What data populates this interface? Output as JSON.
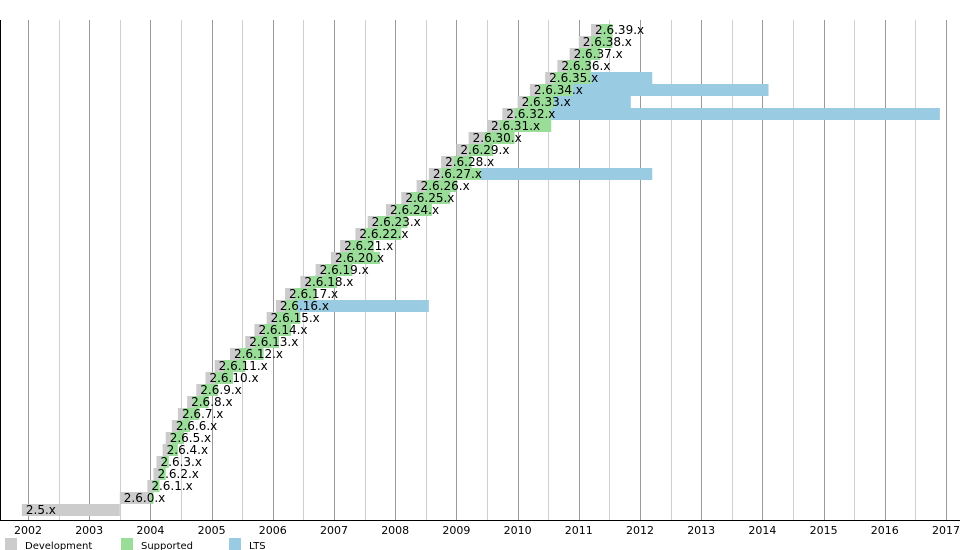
{
  "chart_data": {
    "type": "gantt",
    "title": "",
    "colors": {
      "Development": "#cccccc",
      "Supported": "#99dd99",
      "LTS": "#99cce3",
      "grid": "#999999",
      "grid_minor": "#cfcfcf"
    },
    "x_ticks": [
      2002,
      2003,
      2004,
      2005,
      2006,
      2007,
      2008,
      2009,
      2010,
      2011,
      2012,
      2013,
      2014,
      2015,
      2016,
      2017
    ],
    "xlim": [
      2001.8,
      2017.3
    ],
    "grid": true,
    "legend": {
      "placement": "bottom-left",
      "items": [
        {
          "name": "Development",
          "color": "#cccccc"
        },
        {
          "name": "Supported",
          "color": "#99dd99"
        },
        {
          "name": "LTS",
          "color": "#99cce3"
        }
      ]
    },
    "releases": [
      {
        "version": "2.5.x",
        "dev": [
          2001.9,
          2003.5
        ]
      },
      {
        "version": "2.6.0.x",
        "dev": [
          2003.5,
          2004.0
        ],
        "supported": [
          2004.0,
          2004.05
        ]
      },
      {
        "version": "2.6.1.x",
        "dev": [
          2003.95,
          2004.05
        ],
        "supported": [
          2004.05,
          2004.15
        ]
      },
      {
        "version": "2.6.2.x",
        "dev": [
          2004.05,
          2004.15
        ],
        "supported": [
          2004.15,
          2004.25
        ]
      },
      {
        "version": "2.6.3.x",
        "dev": [
          2004.1,
          2004.2
        ],
        "supported": [
          2004.2,
          2004.3
        ]
      },
      {
        "version": "2.6.4.x",
        "dev": [
          2004.2,
          2004.3
        ],
        "supported": [
          2004.3,
          2004.45
        ]
      },
      {
        "version": "2.6.5.x",
        "dev": [
          2004.25,
          2004.35
        ],
        "supported": [
          2004.35,
          2004.55
        ]
      },
      {
        "version": "2.6.6.x",
        "dev": [
          2004.35,
          2004.45
        ],
        "supported": [
          2004.45,
          2004.65
        ]
      },
      {
        "version": "2.6.7.x",
        "dev": [
          2004.45,
          2004.55
        ],
        "supported": [
          2004.55,
          2004.8
        ]
      },
      {
        "version": "2.6.8.x",
        "dev": [
          2004.6,
          2004.7
        ],
        "supported": [
          2004.7,
          2004.95
        ]
      },
      {
        "version": "2.6.9.x",
        "dev": [
          2004.75,
          2004.85
        ],
        "supported": [
          2004.85,
          2005.1
        ]
      },
      {
        "version": "2.6.10.x",
        "dev": [
          2004.9,
          2005.05
        ],
        "supported": [
          2005.05,
          2005.35
        ]
      },
      {
        "version": "2.6.11.x",
        "dev": [
          2005.05,
          2005.2
        ],
        "supported": [
          2005.2,
          2005.55
        ]
      },
      {
        "version": "2.6.12.x",
        "dev": [
          2005.3,
          2005.45
        ],
        "supported": [
          2005.45,
          2005.85
        ]
      },
      {
        "version": "2.6.13.x",
        "dev": [
          2005.55,
          2005.7
        ],
        "supported": [
          2005.7,
          2006.1
        ]
      },
      {
        "version": "2.6.14.x",
        "dev": [
          2005.7,
          2005.85
        ],
        "supported": [
          2005.85,
          2006.3
        ]
      },
      {
        "version": "2.6.15.x",
        "dev": [
          2005.9,
          2006.05
        ],
        "supported": [
          2006.05,
          2006.45
        ]
      },
      {
        "version": "2.6.16.x",
        "dev": [
          2006.05,
          2006.2
        ],
        "supported": [
          2006.2,
          2006.4
        ],
        "lts": [
          2006.4,
          2008.55
        ]
      },
      {
        "version": "2.6.17.x",
        "dev": [
          2006.2,
          2006.35
        ],
        "supported": [
          2006.35,
          2006.7
        ]
      },
      {
        "version": "2.6.18.x",
        "dev": [
          2006.45,
          2006.6
        ],
        "supported": [
          2006.6,
          2007.05
        ]
      },
      {
        "version": "2.6.19.x",
        "dev": [
          2006.7,
          2006.85
        ],
        "supported": [
          2006.85,
          2007.3
        ]
      },
      {
        "version": "2.6.20.x",
        "dev": [
          2006.95,
          2007.1
        ],
        "supported": [
          2007.1,
          2007.75
        ]
      },
      {
        "version": "2.6.21.x",
        "dev": [
          2007.1,
          2007.25
        ],
        "supported": [
          2007.25,
          2007.65
        ]
      },
      {
        "version": "2.6.22.x",
        "dev": [
          2007.35,
          2007.5
        ],
        "supported": [
          2007.5,
          2008.1
        ]
      },
      {
        "version": "2.6.23.x",
        "dev": [
          2007.55,
          2007.7
        ],
        "supported": [
          2007.7,
          2008.2
        ]
      },
      {
        "version": "2.6.24.x",
        "dev": [
          2007.85,
          2008.0
        ],
        "supported": [
          2008.0,
          2008.6
        ]
      },
      {
        "version": "2.6.25.x",
        "dev": [
          2008.1,
          2008.25
        ],
        "supported": [
          2008.25,
          2008.9
        ]
      },
      {
        "version": "2.6.26.x",
        "dev": [
          2008.35,
          2008.5
        ],
        "supported": [
          2008.5,
          2009.0
        ]
      },
      {
        "version": "2.6.27.x",
        "dev": [
          2008.55,
          2008.75
        ],
        "supported": [
          2008.75,
          2009.4
        ],
        "lts": [
          2009.4,
          2012.2
        ]
      },
      {
        "version": "2.6.28.x",
        "dev": [
          2008.75,
          2008.95
        ],
        "supported": [
          2008.95,
          2009.25
        ]
      },
      {
        "version": "2.6.29.x",
        "dev": [
          2009.0,
          2009.2
        ],
        "supported": [
          2009.2,
          2009.6
        ]
      },
      {
        "version": "2.6.30.x",
        "dev": [
          2009.2,
          2009.45
        ],
        "supported": [
          2009.45,
          2009.95
        ]
      },
      {
        "version": "2.6.31.x",
        "dev": [
          2009.5,
          2009.7
        ],
        "supported": [
          2009.7,
          2010.55
        ]
      },
      {
        "version": "2.6.32.x",
        "dev": [
          2009.75,
          2009.95
        ],
        "supported": [
          2009.95,
          2010.55
        ],
        "lts": [
          2010.55,
          2016.9
        ]
      },
      {
        "version": "2.6.33.x",
        "dev": [
          2010.0,
          2010.15
        ],
        "supported": [
          2010.15,
          2010.6
        ],
        "lts": [
          2010.6,
          2011.85
        ]
      },
      {
        "version": "2.6.34.x",
        "dev": [
          2010.2,
          2010.35
        ],
        "supported": [
          2010.35,
          2010.9
        ],
        "lts": [
          2010.9,
          2014.1
        ]
      },
      {
        "version": "2.6.35.x",
        "dev": [
          2010.45,
          2010.6
        ],
        "supported": [
          2010.6,
          2011.2
        ],
        "lts": [
          2011.2,
          2012.2
        ]
      },
      {
        "version": "2.6.36.x",
        "dev": [
          2010.65,
          2010.8
        ],
        "supported": [
          2010.8,
          2011.2
        ]
      },
      {
        "version": "2.6.37.x",
        "dev": [
          2010.85,
          2011.0
        ],
        "supported": [
          2011.0,
          2011.35
        ]
      },
      {
        "version": "2.6.38.x",
        "dev": [
          2011.0,
          2011.2
        ],
        "supported": [
          2011.2,
          2011.55
        ]
      },
      {
        "version": "2.6.39.x",
        "dev": [
          2011.2,
          2011.35
        ],
        "supported": [
          2011.35,
          2011.55
        ]
      }
    ]
  }
}
